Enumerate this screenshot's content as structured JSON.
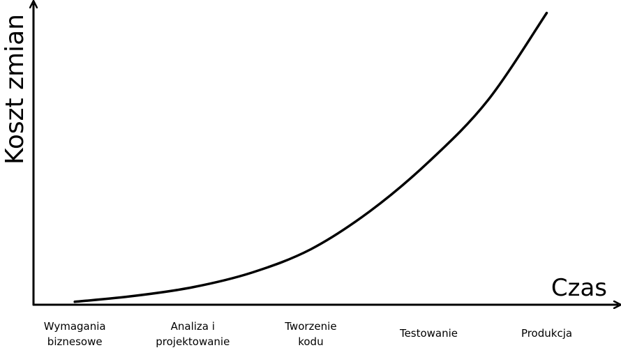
{
  "chart_data": {
    "type": "line",
    "title": "",
    "xlabel": "Czas",
    "ylabel": "Koszt zmian",
    "categories": [
      [
        "Wymagania",
        "biznesowe"
      ],
      [
        "Analiza i",
        "projektowanie"
      ],
      [
        "Tworzenie",
        "kodu"
      ],
      [
        "Testowanie"
      ],
      [
        "Produkcja"
      ]
    ],
    "series": [
      {
        "name": "Koszt zmian",
        "x": [
          0,
          0.5,
          1,
          1.5,
          2,
          2.5,
          3,
          3.5,
          4
        ],
        "values": [
          1,
          3,
          6,
          11,
          19,
          32,
          49,
          70,
          100
        ]
      }
    ],
    "xlim": [
      -0.35,
      4.6
    ],
    "ylim": [
      0,
      103
    ],
    "grid": false,
    "legend": "none",
    "colors": {
      "line": "#000000",
      "axis": "#000000",
      "background": "#ffffff"
    }
  }
}
